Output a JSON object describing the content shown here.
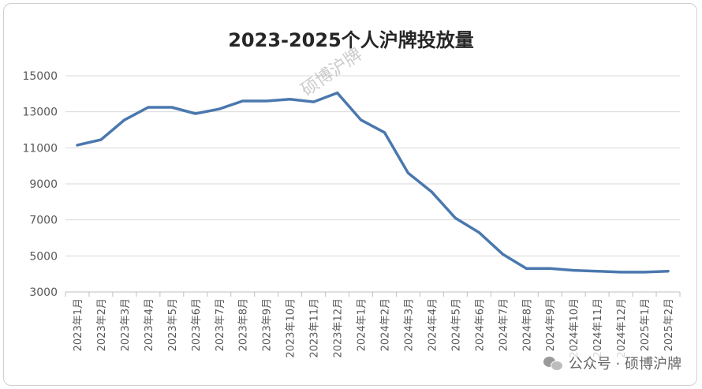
{
  "chart_data": {
    "type": "line",
    "title": "2023-2025个人沪牌投放量",
    "categories": [
      "2023年1月",
      "2023年2月",
      "2023年3月",
      "2023年4月",
      "2023年5月",
      "2023年6月",
      "2023年7月",
      "2023年8月",
      "2023年9月",
      "2023年10月",
      "2023年11月",
      "2023年12月",
      "2024年1月",
      "2024年2月",
      "2024年3月",
      "2024年4月",
      "2024年5月",
      "2024年6月",
      "2024年7月",
      "2024年8月",
      "2024年9月",
      "2024年10月",
      "2024年11月",
      "2024年12月",
      "2025年1月",
      "2025年2月"
    ],
    "values": [
      11150,
      11450,
      12550,
      13250,
      13250,
      12900,
      13150,
      13600,
      13600,
      13700,
      13550,
      14050,
      12550,
      11850,
      9600,
      8550,
      7100,
      6300,
      5100,
      4300,
      4300,
      4200,
      4150,
      4100,
      4100,
      4150
    ],
    "ylim": [
      3000,
      15000
    ],
    "yticks": [
      3000,
      5000,
      7000,
      9000,
      11000,
      13000,
      15000
    ],
    "grid": true,
    "legend": "none",
    "line_color": "#4a78ae"
  },
  "watermark": "硕博沪牌",
  "footer": {
    "icon": "wechat-icon",
    "text": "公众号 · 硕博沪牌"
  }
}
